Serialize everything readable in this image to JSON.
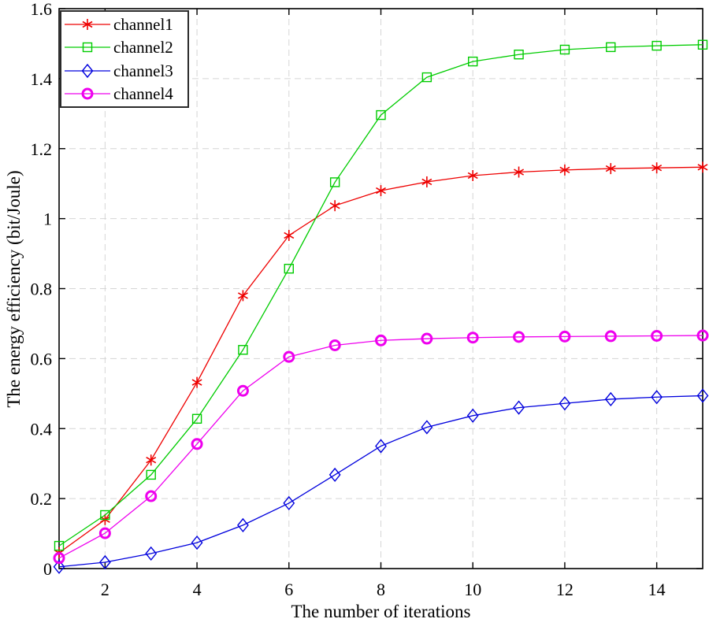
{
  "chart_data": {
    "type": "line",
    "title": "",
    "xlabel": "The number of iterations",
    "ylabel": "The energy efficiency (bit/Joule)",
    "xlim": [
      1,
      15
    ],
    "ylim": [
      0,
      1.6
    ],
    "xticks": [
      2,
      4,
      6,
      8,
      10,
      12,
      14
    ],
    "xtick_labels": [
      "2",
      "4",
      "6",
      "8",
      "10",
      "12",
      "14"
    ],
    "yticks": [
      0,
      0.2,
      0.4,
      0.6,
      0.8,
      1,
      1.2,
      1.4,
      1.6
    ],
    "ytick_labels": [
      "0",
      "0.2",
      "0.4",
      "0.6",
      "0.8",
      "1",
      "1.2",
      "1.4",
      "1.6"
    ],
    "grid": true,
    "grid_color": "#d5d5d5",
    "axis_color": "#000000",
    "legend_position": "top-left",
    "x": [
      1,
      2,
      3,
      4,
      5,
      6,
      7,
      8,
      9,
      10,
      11,
      12,
      13,
      14,
      15
    ],
    "series": [
      {
        "name": "channel1",
        "color": "#ee0000",
        "marker": "asterisk",
        "values": [
          0.045,
          0.14,
          0.31,
          0.532,
          0.78,
          0.952,
          1.037,
          1.08,
          1.105,
          1.123,
          1.133,
          1.139,
          1.143,
          1.145,
          1.147
        ]
      },
      {
        "name": "channel2",
        "color": "#00cc00",
        "marker": "square",
        "values": [
          0.065,
          0.153,
          0.268,
          0.428,
          0.625,
          0.857,
          1.104,
          1.296,
          1.404,
          1.449,
          1.469,
          1.483,
          1.49,
          1.494,
          1.497
        ]
      },
      {
        "name": "channel3",
        "color": "#0000dd",
        "marker": "diamond",
        "values": [
          0.005,
          0.018,
          0.043,
          0.074,
          0.124,
          0.187,
          0.268,
          0.35,
          0.404,
          0.437,
          0.46,
          0.472,
          0.484,
          0.49,
          0.494
        ]
      },
      {
        "name": "channel4",
        "color": "#ee00ee",
        "marker": "circle",
        "values": [
          0.03,
          0.101,
          0.207,
          0.356,
          0.508,
          0.605,
          0.638,
          0.652,
          0.657,
          0.66,
          0.662,
          0.663,
          0.664,
          0.665,
          0.666
        ]
      }
    ]
  }
}
